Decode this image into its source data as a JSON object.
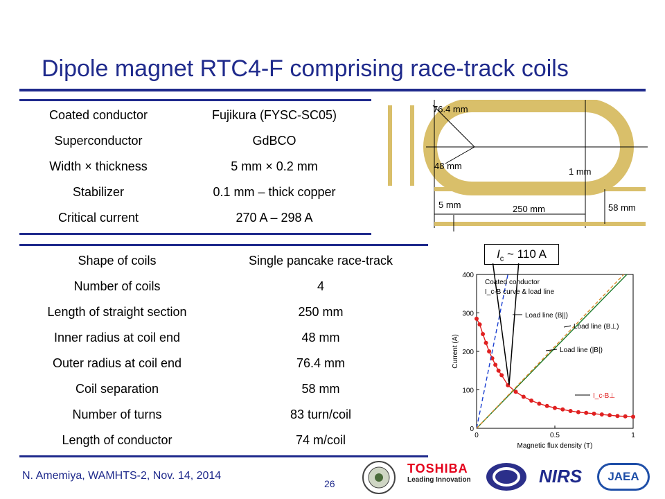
{
  "title": "Dipole magnet RTC4-F comprising race-track coils",
  "conductor_table": [
    {
      "label": "Coated conductor",
      "value": "Fujikura (FYSC-SC05)"
    },
    {
      "label": "Superconductor",
      "value": "GdBCO"
    },
    {
      "label": "Width × thickness",
      "value": "5 mm × 0.2 mm"
    },
    {
      "label": "Stabilizer",
      "value": "0.1 mm – thick copper"
    },
    {
      "label": "Critical current",
      "value": "270 A – 298 A"
    }
  ],
  "coil_table": [
    {
      "label": "Shape of coils",
      "value": "Single pancake race-track"
    },
    {
      "label": "Number of coils",
      "value": "4"
    },
    {
      "label": "Length of straight section",
      "value": "250 mm"
    },
    {
      "label": "Inner radius at coil end",
      "value": "48 mm"
    },
    {
      "label": "Outer radius at coil end",
      "value": "76.4 mm"
    },
    {
      "label": "Coil separation",
      "value": "58 mm"
    },
    {
      "label": "Number of turns",
      "value": "83 turn/coil"
    },
    {
      "label": "Length of conductor",
      "value": "74 m/coil"
    }
  ],
  "diagram": {
    "outer_radius": "76.4 mm",
    "inner_radius": "48 mm",
    "gap": "1 mm",
    "width": "5 mm",
    "length": "250 mm",
    "separation": "58 mm"
  },
  "callout": {
    "symbol": "I",
    "subscript": "c",
    "text": "~ 110 A"
  },
  "footer": {
    "author": "N. Amemiya, WAMHTS-2, Nov. 14, 2014",
    "page": "26"
  },
  "logos": {
    "toshiba": "TOSHIBA",
    "toshiba_tagline": "Leading Innovation",
    "nirs": "NIRS",
    "jaea": "JAEA"
  },
  "colors": {
    "title": "#1f2a8c",
    "coil": "#d9bf6a",
    "ic_curve": "#e02020",
    "load_line": "#1a7a2a"
  },
  "chart_data": {
    "type": "line",
    "xlabel": "Magnetic flux density (T)",
    "ylabel": "Current (A)",
    "xlim": [
      0,
      1
    ],
    "ylim": [
      0,
      400
    ],
    "xticks": [
      0,
      0.5,
      1
    ],
    "yticks": [
      0,
      100,
      200,
      300,
      400
    ],
    "legend_title": [
      "Coated conductor",
      "I_c-B curve & load line"
    ],
    "series": [
      {
        "name": "I_c-B⊥",
        "style": "red-markers",
        "x": [
          0,
          0.02,
          0.04,
          0.06,
          0.08,
          0.1,
          0.12,
          0.14,
          0.16,
          0.2,
          0.25,
          0.3,
          0.35,
          0.4,
          0.45,
          0.5,
          0.55,
          0.6,
          0.65,
          0.7,
          0.75,
          0.8,
          0.85,
          0.9,
          0.95,
          1.0
        ],
        "y": [
          285,
          270,
          245,
          222,
          200,
          182,
          165,
          150,
          138,
          112,
          95,
          82,
          72,
          64,
          58,
          53,
          49,
          45,
          42,
          40,
          38,
          36,
          34,
          32,
          31,
          30
        ]
      },
      {
        "name": "Load line (B||)",
        "style": "blue-dashed",
        "x": [
          0,
          0.2
        ],
        "y": [
          0,
          400
        ]
      },
      {
        "name": "Load line (B⊥)",
        "style": "green",
        "x": [
          0,
          0.96
        ],
        "y": [
          0,
          400
        ]
      },
      {
        "name": "Load line (|B|)",
        "style": "orange-dashed",
        "x": [
          0,
          0.94
        ],
        "y": [
          0,
          400
        ]
      }
    ],
    "annotations": [
      "Load line (B||)",
      "Load line (B⊥)",
      "Load line (|B|)",
      "I_c-B⊥"
    ]
  }
}
